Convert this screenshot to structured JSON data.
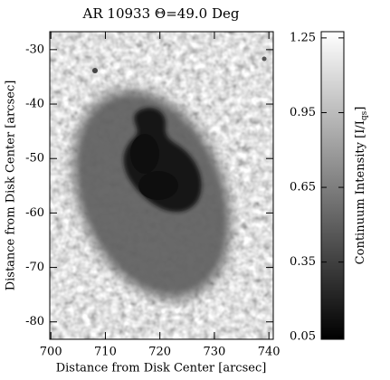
{
  "chart_data": {
    "type": "image",
    "title": "AR 10933 Θ=49.0 Deg",
    "x_label": "Distance from Disk Center [arcsec]",
    "y_label": "Distance from Disk Center [arcsec]",
    "xlim": [
      699.8,
      740.8
    ],
    "xticks": [
      700,
      710,
      720,
      730,
      740
    ],
    "ylim": [
      -83.2,
      -26.7
    ],
    "yticks": [
      -80,
      -70,
      -60,
      -50,
      -40,
      -30
    ],
    "colorbar": {
      "label": "Continuum Intensity [I/I",
      "label_sub": "qs",
      "label_end": "]",
      "lim": [
        0.04,
        1.275
      ],
      "ticks": [
        0.05,
        0.35,
        0.65,
        0.95,
        1.25
      ]
    }
  }
}
